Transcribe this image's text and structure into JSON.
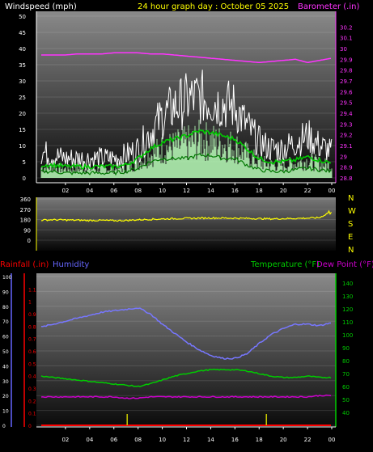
{
  "header": {
    "left_label": "Windspeed (mph)",
    "center_label": "24 hour graph day : October 05 2025",
    "right_label": "Barometer (.in)"
  },
  "colors": {
    "background": "#000000",
    "wind_raw": "#ffffff",
    "wind_avg": "#00cc00",
    "wind_gust_fill": "#bbffbb",
    "barometer": "#ff33ff",
    "direction": "#ffff00",
    "humidity": "#7777ff",
    "temperature": "#00cc00",
    "dew_point": "#cc00cc",
    "rain": "#ff0000",
    "rain_axis": "#ff0000",
    "humidity_axis": "#6666ff",
    "temp_axis": "#00cc00",
    "label_white": "#ffffff",
    "label_yellow": "#ffff00"
  },
  "time_ticks": [
    "02",
    "04",
    "06",
    "08",
    "10",
    "12",
    "14",
    "16",
    "18",
    "20",
    "22",
    "00"
  ],
  "chart_data": [
    {
      "type": "line",
      "title": "24 hour graph day : October 05 2025",
      "ylabel": "Windspeed (mph)",
      "y2label": "Barometer (.in)",
      "ylim": [
        0,
        50
      ],
      "y2lim": [
        28.8,
        30.3
      ],
      "yticks": [
        0,
        5,
        10,
        15,
        20,
        25,
        30,
        35,
        40,
        45,
        50
      ],
      "y2ticks": [
        "28.8",
        "28.9",
        "29",
        "29.1",
        "29.2",
        "29.3",
        "29.4",
        "29.5",
        "29.6",
        "29.7",
        "29.8",
        "29.9",
        "30",
        "30.1",
        "30.2"
      ],
      "x_hours": [
        0,
        1,
        2,
        3,
        4,
        5,
        6,
        7,
        8,
        9,
        10,
        11,
        12,
        13,
        14,
        15,
        16,
        17,
        18,
        19,
        20,
        21,
        22,
        23,
        24
      ],
      "series": [
        {
          "name": "Windspeed (mph)",
          "style": "raw",
          "values": [
            8,
            7,
            6,
            6,
            6,
            6,
            6,
            7,
            9,
            14,
            19,
            22,
            24,
            25,
            24,
            23,
            22,
            16,
            11,
            9,
            9,
            11,
            13,
            10,
            8
          ]
        },
        {
          "name": "Windspeed average",
          "style": "avg",
          "values": [
            4,
            4,
            3.5,
            3.5,
            3.5,
            3.5,
            3.5,
            4,
            6,
            9,
            11,
            12,
            13,
            14.5,
            14,
            13,
            12,
            9,
            6,
            5,
            5,
            5.5,
            6.5,
            5.5,
            4.5
          ]
        },
        {
          "name": "Windspeed low",
          "style": "low",
          "values": [
            2,
            2,
            1.5,
            1.5,
            1.5,
            1.5,
            1.5,
            2,
            3,
            5,
            6,
            6,
            6,
            7,
            7,
            6,
            6,
            4,
            2.5,
            2,
            2,
            2.5,
            3,
            2.5,
            2
          ]
        },
        {
          "name": "Barometer (.in)",
          "style": "baro",
          "values": [
            29.94,
            29.94,
            29.94,
            29.95,
            29.95,
            29.95,
            29.96,
            29.96,
            29.96,
            29.95,
            29.95,
            29.94,
            29.93,
            29.92,
            29.91,
            29.9,
            29.89,
            29.88,
            29.87,
            29.88,
            29.89,
            29.9,
            29.87,
            29.89,
            29.91
          ]
        }
      ]
    },
    {
      "type": "line",
      "title": "",
      "ylim": [
        0,
        360
      ],
      "yticks": [
        0,
        90,
        180,
        270,
        360
      ],
      "direction_labels": [
        "N",
        "W",
        "S",
        "E",
        "N"
      ],
      "x_hours": [
        0,
        1,
        2,
        3,
        4,
        5,
        6,
        7,
        8,
        9,
        10,
        11,
        12,
        13,
        14,
        15,
        16,
        17,
        18,
        19,
        20,
        21,
        22,
        23,
        24
      ],
      "series": [
        {
          "name": "Wind direction",
          "values": [
            175,
            178,
            176,
            174,
            172,
            173,
            170,
            172,
            178,
            182,
            185,
            188,
            190,
            192,
            194,
            193,
            192,
            190,
            188,
            186,
            188,
            190,
            192,
            196,
            255
          ]
        }
      ]
    },
    {
      "type": "line",
      "title": "",
      "labels": {
        "rain": "Rainfall (.in)",
        "humidity": "Humidity",
        "temperature": "Temperature (°F)",
        "dew_point": "Dew Point (°F)"
      },
      "humidity_lim": [
        0,
        100
      ],
      "humidity_ticks": [
        0,
        10,
        20,
        30,
        40,
        50,
        60,
        70,
        80,
        90,
        100
      ],
      "rain_lim": [
        0,
        1.2
      ],
      "rain_ticks": [
        "0",
        "0.1",
        "0.2",
        "0.3",
        "0.4",
        "0.5",
        "0.6",
        "0.7",
        "0.8",
        "0.9",
        "1",
        "1.1"
      ],
      "temp_lim": [
        30,
        145
      ],
      "temp_ticks": [
        40,
        50,
        60,
        70,
        80,
        90,
        100,
        110,
        120,
        130,
        140
      ],
      "x_hours": [
        0,
        1,
        2,
        3,
        4,
        5,
        6,
        7,
        8,
        9,
        10,
        11,
        12,
        13,
        14,
        15,
        16,
        17,
        18,
        19,
        20,
        21,
        22,
        23,
        24
      ],
      "series": [
        {
          "name": "Humidity",
          "axis": "humidity",
          "values": [
            66,
            68,
            70,
            72,
            74,
            76,
            77,
            78,
            79,
            75,
            68,
            62,
            56,
            51,
            47,
            45,
            45,
            48,
            55,
            61,
            65,
            68,
            68,
            67,
            69
          ]
        },
        {
          "name": "Temperature (°F)",
          "axis": "temp",
          "values": [
            68,
            67,
            66,
            65,
            64,
            63,
            62,
            61,
            60,
            62,
            65,
            68,
            70,
            72,
            73,
            73,
            73,
            72,
            70,
            68,
            67,
            67,
            68,
            67,
            67
          ]
        },
        {
          "name": "Dew Point (°F)",
          "axis": "temp",
          "values": [
            52,
            52,
            52,
            52,
            52,
            52,
            52,
            51,
            51,
            52,
            52,
            52,
            52,
            52,
            52,
            52,
            52,
            52,
            52,
            52,
            52,
            52,
            52,
            53,
            53
          ]
        },
        {
          "name": "Rainfall (.in)",
          "axis": "rain",
          "values": [
            0,
            0,
            0,
            0,
            0,
            0,
            0,
            0,
            0,
            0,
            0,
            0,
            0,
            0,
            0,
            0,
            0,
            0,
            0,
            0,
            0,
            0,
            0,
            0,
            0
          ]
        }
      ],
      "rain_markers_hours": [
        7.1,
        18.6
      ]
    }
  ]
}
